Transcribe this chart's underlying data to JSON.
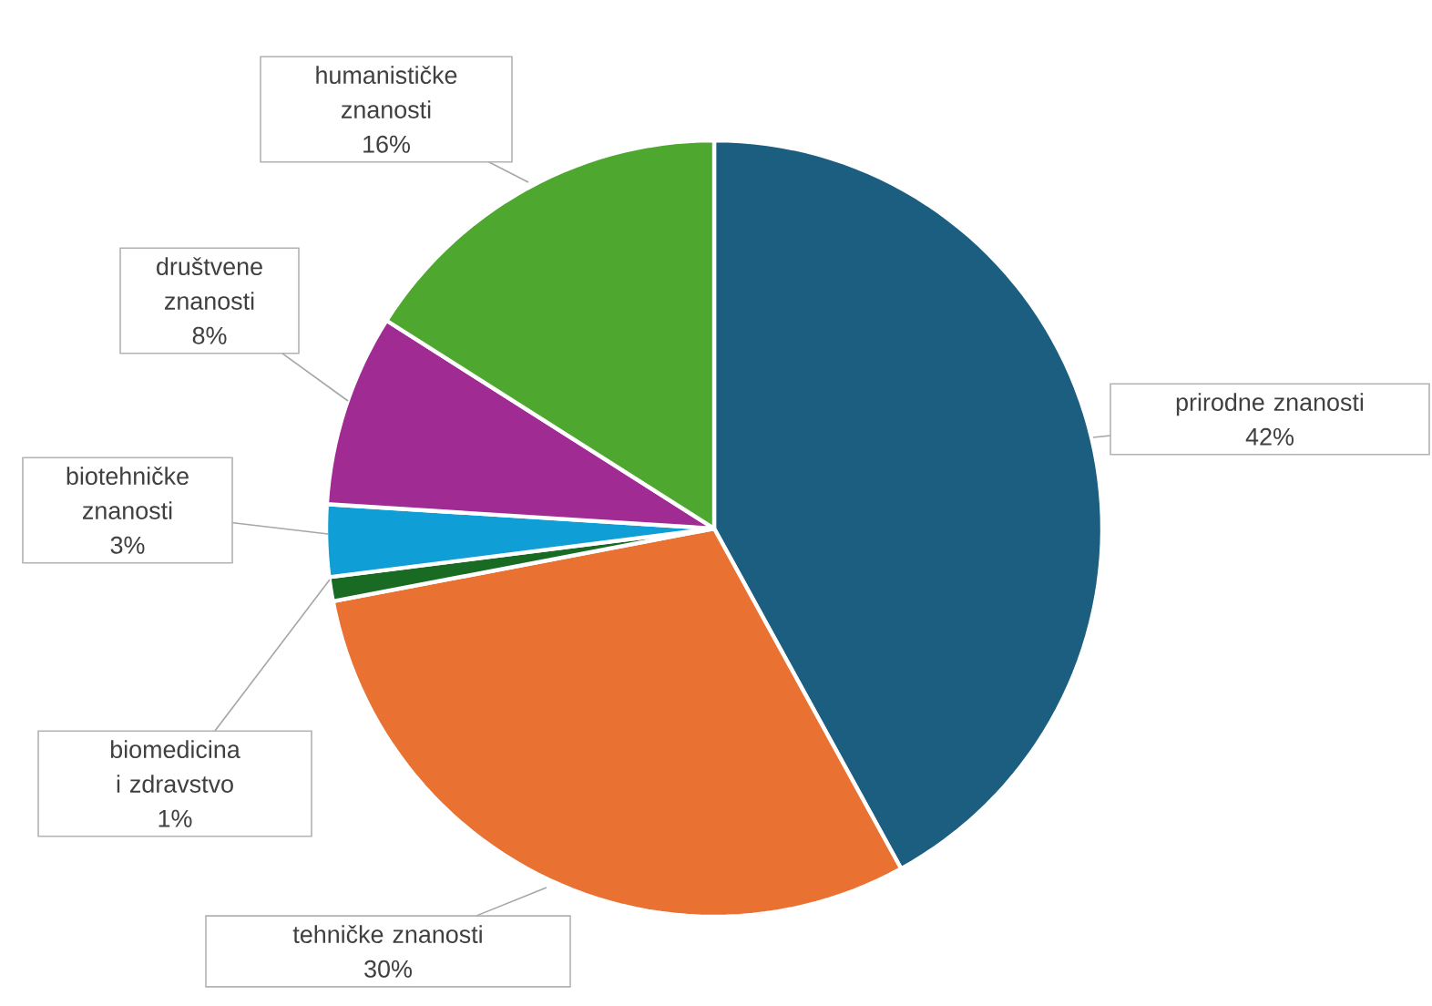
{
  "chart_data": {
    "type": "pie",
    "categories": [
      "prirodne znanosti",
      "tehničke znanosti",
      "biomedicina i zdravstvo",
      "biotehničke znanosti",
      "društvene znanosti",
      "humanističke znanosti"
    ],
    "values": [
      42,
      30,
      1,
      3,
      8,
      16
    ],
    "colors": [
      "#1b5e80",
      "#e97132",
      "#196b24",
      "#0f9ed5",
      "#a02b93",
      "#4ea72e"
    ],
    "value_labels": [
      "42%",
      "30%",
      "1%",
      "3%",
      "8%",
      "16%"
    ]
  }
}
